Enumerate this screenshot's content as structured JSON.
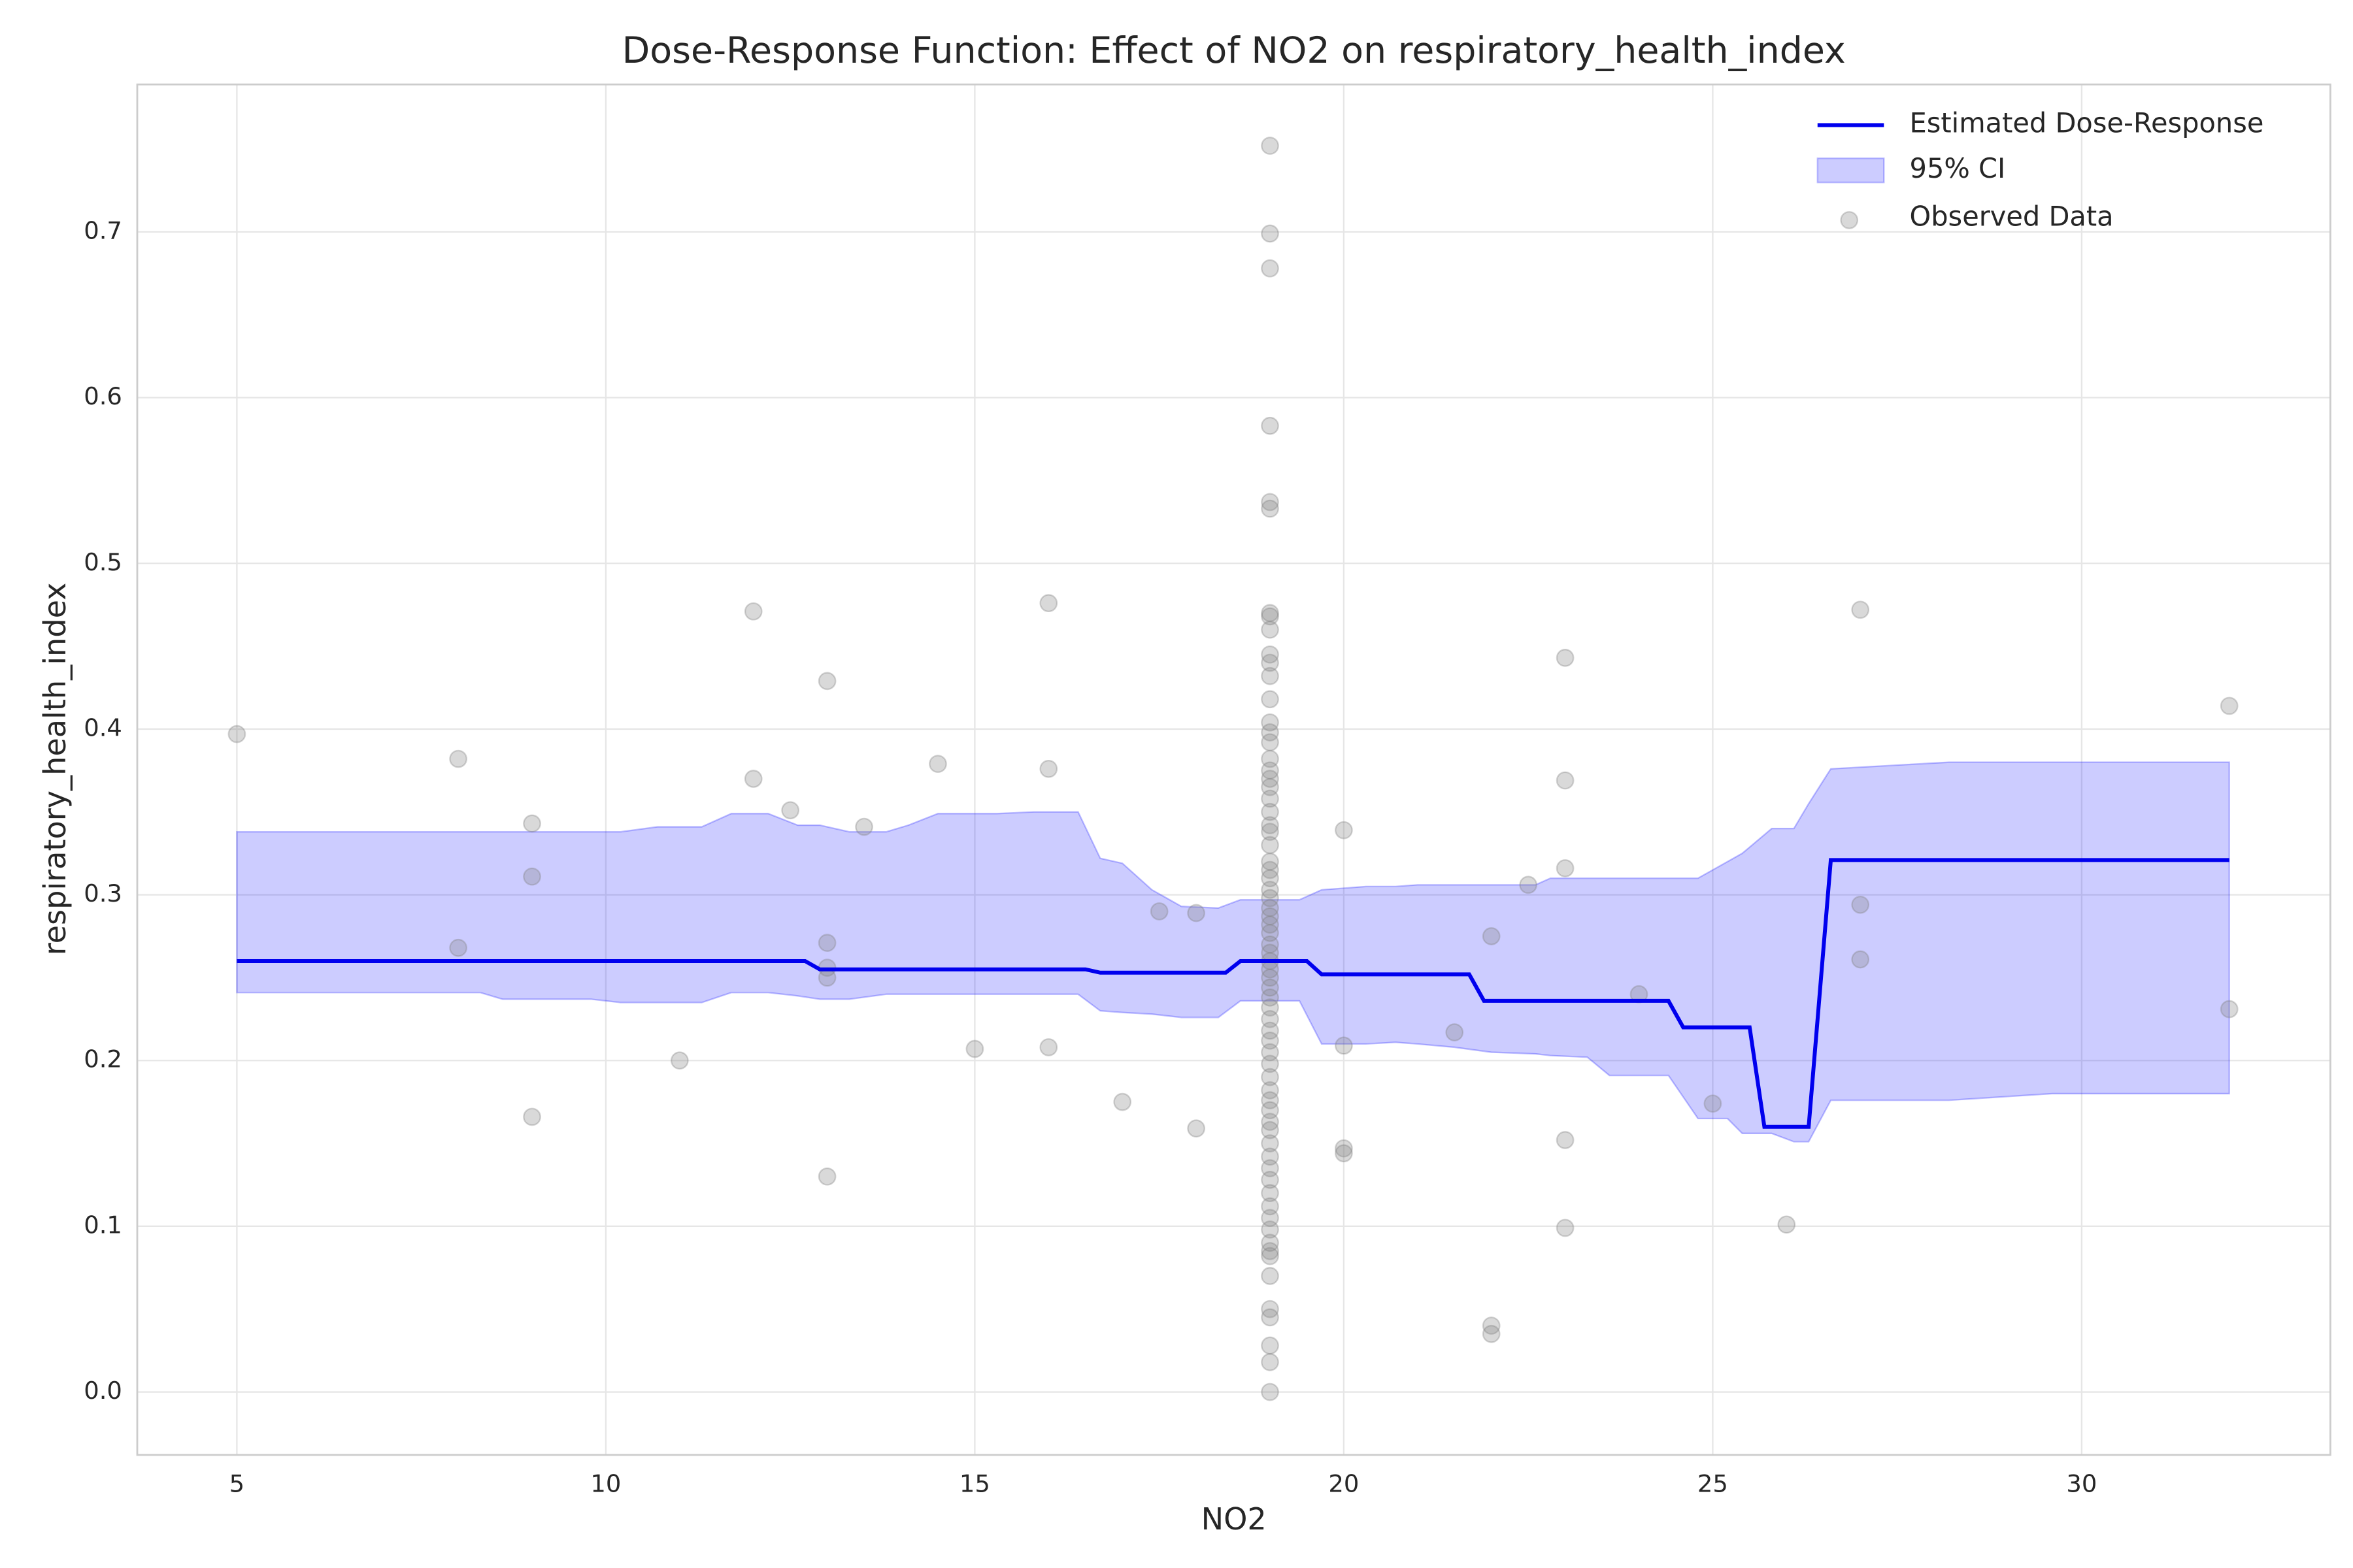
{
  "chart_data": {
    "type": "line",
    "title": "Dose-Response Function: Effect of NO2 on respiratory_health_index",
    "x_label": "NO2",
    "y_label": "respiratory_health_index",
    "xlim": [
      3.65,
      33.37
    ],
    "ylim": [
      -0.038,
      0.789
    ],
    "xticks": [
      5,
      10,
      15,
      20,
      25,
      30
    ],
    "yticks": [
      {
        "value": 0,
        "label": "0.0"
      },
      0.1,
      0.2,
      0.3,
      0.4,
      0.5,
      0.6,
      0.7
    ],
    "grid": true,
    "legend": "upper right",
    "series": [
      {
        "name": "Estimated Dose-Response",
        "color": "#0000ee",
        "x": [
          5,
          12.7,
          12.9,
          16.5,
          16.7,
          18.4,
          18.6,
          19.5,
          19.7,
          21.7,
          21.9,
          24.4,
          24.6,
          25.5,
          25.7,
          26.3,
          26.6,
          32
        ],
        "values": [
          0.26,
          0.26,
          0.255,
          0.255,
          0.253,
          0.253,
          0.26,
          0.26,
          0.252,
          0.252,
          0.236,
          0.236,
          0.22,
          0.22,
          0.16,
          0.16,
          0.321,
          0.321
        ]
      }
    ],
    "ci": {
      "name": "95% CI",
      "color": "#0000ff",
      "x": [
        5,
        8.3,
        8.6,
        9.8,
        10.2,
        10.7,
        11.3,
        11.7,
        12.2,
        12.6,
        12.9,
        13.3,
        13.8,
        14.1,
        14.5,
        15.3,
        15.8,
        16.4,
        16.7,
        17.0,
        17.4,
        17.8,
        18.3,
        18.6,
        19.4,
        19.7,
        20.3,
        20.7,
        21.0,
        21.5,
        22.0,
        22.6,
        22.8,
        23.3,
        23.6,
        24.4,
        24.8,
        25.2,
        25.4,
        25.8,
        26.1,
        26.3,
        26.6,
        28.2,
        29.6,
        32
      ],
      "upper": [
        0.338,
        0.338,
        0.338,
        0.338,
        0.338,
        0.341,
        0.341,
        0.349,
        0.349,
        0.342,
        0.342,
        0.338,
        0.338,
        0.342,
        0.349,
        0.349,
        0.35,
        0.35,
        0.322,
        0.319,
        0.303,
        0.293,
        0.292,
        0.297,
        0.297,
        0.303,
        0.305,
        0.305,
        0.306,
        0.306,
        0.306,
        0.306,
        0.31,
        0.31,
        0.31,
        0.31,
        0.31,
        0.32,
        0.325,
        0.34,
        0.34,
        0.355,
        0.376,
        0.38,
        0.38,
        0.38
      ],
      "lower": [
        0.241,
        0.241,
        0.237,
        0.237,
        0.235,
        0.235,
        0.235,
        0.241,
        0.241,
        0.239,
        0.237,
        0.237,
        0.24,
        0.24,
        0.24,
        0.24,
        0.24,
        0.24,
        0.23,
        0.229,
        0.228,
        0.226,
        0.226,
        0.236,
        0.236,
        0.21,
        0.21,
        0.211,
        0.21,
        0.208,
        0.205,
        0.204,
        0.203,
        0.202,
        0.191,
        0.191,
        0.165,
        0.165,
        0.156,
        0.156,
        0.151,
        0.151,
        0.176,
        0.176,
        0.18,
        0.18
      ]
    },
    "scatter": {
      "name": "Observed Data",
      "color": "#808080",
      "x": [
        5,
        8,
        8,
        9,
        9,
        9,
        11,
        12,
        12,
        12.5,
        13,
        13,
        13,
        13,
        13,
        13.5,
        14.5,
        15,
        16,
        16,
        16,
        17,
        17.5,
        18,
        18,
        20,
        20,
        20,
        20,
        21.5,
        22,
        22,
        22,
        22.5,
        23,
        23,
        23,
        23,
        23,
        24,
        25,
        26,
        27,
        27,
        27,
        32,
        32,
        19,
        19,
        19,
        19,
        19,
        19,
        19,
        19,
        19,
        19,
        19,
        19,
        19,
        19,
        19,
        19,
        19,
        19,
        19,
        19,
        19,
        19,
        19,
        19,
        19,
        19,
        19,
        19,
        19,
        19,
        19,
        19,
        19,
        19,
        19,
        19,
        19,
        19,
        19,
        19,
        19,
        19,
        19,
        19,
        19,
        19,
        19,
        19,
        19,
        19,
        19,
        19,
        19,
        19,
        19,
        19,
        19,
        19,
        19,
        19,
        19,
        19,
        19,
        19,
        19,
        19,
        19,
        19,
        19,
        19
      ],
      "y": [
        0.397,
        0.382,
        0.268,
        0.343,
        0.311,
        0.166,
        0.2,
        0.471,
        0.37,
        0.351,
        0.429,
        0.271,
        0.256,
        0.25,
        0.13,
        0.341,
        0.379,
        0.207,
        0.476,
        0.376,
        0.208,
        0.175,
        0.29,
        0.289,
        0.159,
        0.339,
        0.209,
        0.147,
        0.144,
        0.217,
        0.275,
        0.04,
        0.035,
        0.306,
        0.443,
        0.369,
        0.316,
        0.152,
        0.099,
        0.24,
        0.174,
        0.101,
        0.472,
        0.294,
        0.261,
        0.414,
        0.231,
        0.752,
        0.699,
        0.678,
        0.583,
        0.537,
        0.533,
        0.47,
        0.468,
        0.46,
        0.445,
        0.44,
        0.432,
        0.418,
        0.404,
        0.398,
        0.392,
        0.382,
        0.375,
        0.37,
        0.365,
        0.358,
        0.35,
        0.342,
        0.338,
        0.33,
        0.32,
        0.315,
        0.31,
        0.303,
        0.298,
        0.292,
        0.287,
        0.282,
        0.277,
        0.27,
        0.265,
        0.26,
        0.255,
        0.25,
        0.244,
        0.238,
        0.232,
        0.225,
        0.218,
        0.212,
        0.205,
        0.198,
        0.19,
        0.182,
        0.176,
        0.17,
        0.163,
        0.158,
        0.15,
        0.142,
        0.135,
        0.128,
        0.12,
        0.112,
        0.105,
        0.098,
        0.09,
        0.085,
        0.082,
        0.07,
        0.05,
        0.045,
        0.028,
        0.018,
        0
      ]
    }
  }
}
